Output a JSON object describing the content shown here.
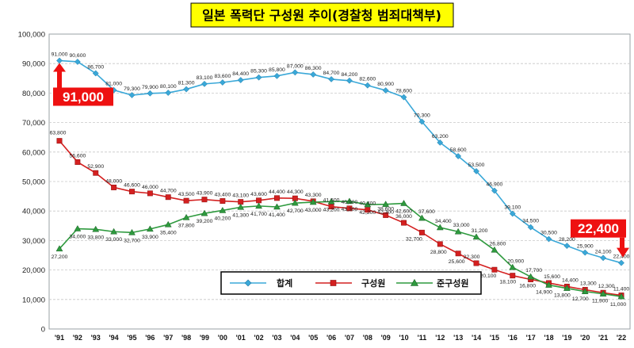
{
  "chart_data": {
    "type": "line",
    "title": "일본 폭력단 구성원 추이(경찰청 범죄대책부)",
    "categories": [
      "'91",
      "'92",
      "'93",
      "'94",
      "'95",
      "'96",
      "'97",
      "'98",
      "'99",
      "'00",
      "'01",
      "'02",
      "'03",
      "'04",
      "'05",
      "'06",
      "'07",
      "'08",
      "'09",
      "'10",
      "'11",
      "'12",
      "'13",
      "'14",
      "'15",
      "'16",
      "'17",
      "'18",
      "'19",
      "'20",
      "'21",
      "'22"
    ],
    "ylim": [
      0,
      100000
    ],
    "yticks": [
      0,
      10000,
      20000,
      30000,
      40000,
      50000,
      60000,
      70000,
      80000,
      90000,
      100000
    ],
    "ytick_labels": [
      "0",
      "10,000",
      "20,000",
      "30,000",
      "40,000",
      "50,000",
      "60,000",
      "70,000",
      "80,000",
      "90,000",
      "100,000"
    ],
    "grid": true,
    "legend_position": "bottom-center",
    "series": [
      {
        "name": "합계",
        "color": "#3aa8d8",
        "marker": "diamond",
        "values": [
          91000,
          90600,
          86700,
          81000,
          79300,
          79900,
          80100,
          81300,
          83100,
          83600,
          84400,
          85300,
          85800,
          87000,
          86300,
          84700,
          84200,
          82600,
          80900,
          78600,
          70300,
          63200,
          58600,
          53500,
          46900,
          39100,
          34500,
          30500,
          28200,
          25900,
          24100,
          22400
        ],
        "labels": [
          "91,000",
          "90,600",
          "86,700",
          "81,000",
          "79,300",
          "79,900",
          "80,100",
          "81,300",
          "83,100",
          "83,600",
          "84,400",
          "85,300",
          "85,800",
          "87,000",
          "86,300",
          "84,700",
          "84,200",
          "82,600",
          "80,900",
          "78,600",
          "70,300",
          "63,200",
          "58,600",
          "53,500",
          "46,900",
          "39,100",
          "34,500",
          "30,500",
          "28,200",
          "25,900",
          "24,100",
          "22,400"
        ]
      },
      {
        "name": "구성원",
        "color": "#d42020",
        "marker": "square",
        "values": [
          63800,
          56600,
          52900,
          48000,
          46600,
          46000,
          44700,
          43500,
          43900,
          43400,
          43100,
          43600,
          44400,
          44300,
          43300,
          41500,
          40900,
          40400,
          38600,
          36000,
          32700,
          28800,
          25600,
          22300,
          20100,
          18100,
          16800,
          15600,
          14400,
          13300,
          12300,
          11400
        ],
        "labels": [
          "63,800",
          "56,600",
          "52,900",
          "48,000",
          "46,600",
          "46,000",
          "44,700",
          "43,500",
          "43,900",
          "43,400",
          "43,100",
          "43,600",
          "44,400",
          "44,300",
          "43,300",
          "41,500",
          "40,900",
          "40,400",
          "38,600",
          "36,000",
          "32,700",
          "28,800",
          "25,600",
          "22,300",
          "20,100",
          "18,100",
          "16,800",
          "15,600",
          "14,400",
          "13,300",
          "12,300",
          "11,400"
        ]
      },
      {
        "name": "준구성원",
        "color": "#2e9a3e",
        "marker": "triangle",
        "values": [
          27200,
          34000,
          33800,
          33000,
          32700,
          33900,
          35400,
          37800,
          39200,
          40200,
          41300,
          41700,
          41400,
          42700,
          43000,
          43200,
          43300,
          42200,
          42300,
          42600,
          37600,
          34400,
          33000,
          31200,
          26800,
          20900,
          17700,
          14900,
          13800,
          12700,
          11900,
          11000
        ],
        "labels": [
          "27,200",
          "34,000",
          "33,800",
          "33,000",
          "32,700",
          "33,900",
          "35,400",
          "37,800",
          "39,200",
          "40,200",
          "41,300",
          "41,700",
          "41,400",
          "42,700",
          "43,000",
          "43,200",
          "43,300",
          "42,200",
          "42,300",
          "42,600",
          "37,600",
          "34,400",
          "33,000",
          "31,200",
          "26,800",
          "20,900",
          "17,700",
          "14,900",
          "13,800",
          "12,700",
          "11,900",
          "11,000"
        ]
      }
    ],
    "annotations": [
      {
        "text": "91,000",
        "category": "'91",
        "value": 91000,
        "color": "#ee1111"
      },
      {
        "text": "22,400",
        "category": "'22",
        "value": 22400,
        "color": "#ee1111"
      }
    ]
  }
}
